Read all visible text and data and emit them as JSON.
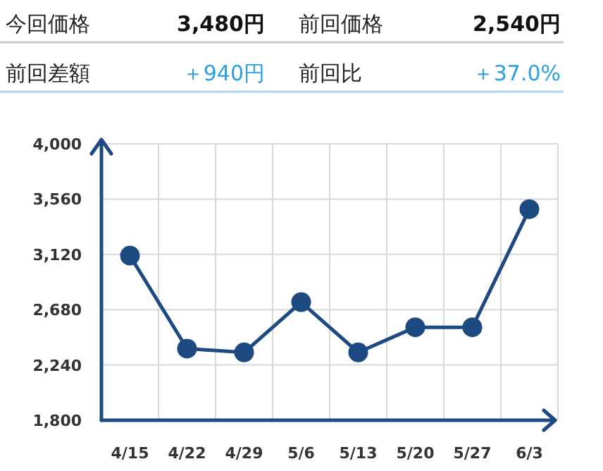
{
  "chart_data": [
    {
      "type": "other",
      "annotations": [
        "今回価格",
        "3,480円",
        "前回価格",
        "2,540円",
        "前回差額",
        "＋940円",
        "前回比",
        "＋37.0%"
      ]
    },
    {
      "type": "line",
      "categories": [
        "4/15",
        "4/22",
        "4/29",
        "5/6",
        "5/13",
        "5/20",
        "5/27",
        "6/3"
      ],
      "series": [
        {
          "color": "#1e4a82",
          "values": [
            3110,
            2370,
            2340,
            2740,
            2340,
            2540,
            2540,
            3480
          ]
        }
      ],
      "ylim": [
        1800,
        4000
      ],
      "yticks": [
        {
          "value": 1800,
          "label": "1,800"
        },
        {
          "value": 2240,
          "label": "2,240"
        },
        {
          "value": 2680,
          "label": "2,680"
        },
        {
          "value": 3120,
          "label": "3,120"
        },
        {
          "value": 3560,
          "label": "3,560"
        },
        {
          "value": 4000,
          "label": "4,000"
        }
      ],
      "grid": true,
      "marker": "circle",
      "line_style": "solid"
    }
  ]
}
